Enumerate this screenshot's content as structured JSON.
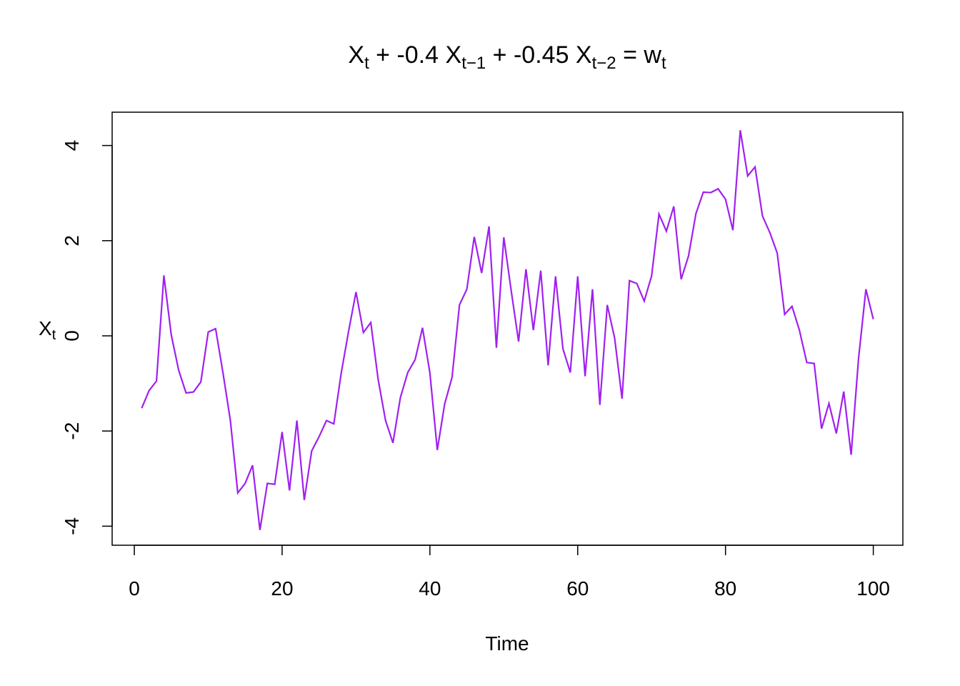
{
  "chart_data": {
    "type": "line",
    "title": {
      "parts": [
        {
          "text": "X",
          "sub": "t"
        },
        {
          "text": " +  -0.4 X",
          "sub": "t−1"
        },
        {
          "text": " +  -0.45 X",
          "sub": "t−2"
        },
        {
          "text": " = w",
          "sub": "t"
        }
      ]
    },
    "xlabel": "Time",
    "ylabel": {
      "text": "X",
      "sub": "t"
    },
    "xlim": [
      -3,
      104
    ],
    "ylim": [
      -4.4,
      4.7
    ],
    "xticks": [
      0,
      20,
      40,
      60,
      80,
      100
    ],
    "yticks": [
      -4,
      -2,
      0,
      2,
      4
    ],
    "grid": false,
    "series": [
      {
        "color": "#A020F0",
        "x": [
          1,
          2,
          3,
          4,
          5,
          6,
          7,
          8,
          9,
          10,
          11,
          12,
          13,
          14,
          15,
          16,
          17,
          18,
          19,
          20,
          21,
          22,
          23,
          24,
          25,
          26,
          27,
          28,
          29,
          30,
          31,
          32,
          33,
          34,
          35,
          36,
          37,
          38,
          39,
          40,
          41,
          42,
          43,
          44,
          45,
          46,
          47,
          48,
          49,
          50,
          51,
          52,
          53,
          54,
          55,
          56,
          57,
          58,
          59,
          60,
          61,
          62,
          63,
          64,
          65,
          66,
          67,
          68,
          69,
          70,
          71,
          72,
          73,
          74,
          75,
          76,
          77,
          78,
          79,
          80,
          81,
          82,
          83,
          84,
          85,
          86,
          87,
          88,
          89,
          90,
          91,
          92,
          93,
          94,
          95,
          96,
          97,
          98,
          99,
          100
        ],
        "values": [
          -1.52,
          -1.15,
          -0.95,
          1.27,
          0.02,
          -0.72,
          -1.2,
          -1.18,
          -0.97,
          0.08,
          0.15,
          -0.78,
          -1.78,
          -3.3,
          -3.1,
          -2.72,
          -4.08,
          -3.1,
          -3.12,
          -2.02,
          -3.25,
          -1.78,
          -3.45,
          -2.42,
          -2.12,
          -1.78,
          -1.85,
          -0.78,
          0.1,
          0.92,
          0.07,
          0.28,
          -0.92,
          -1.78,
          -2.25,
          -1.3,
          -0.77,
          -0.5,
          0.17,
          -0.78,
          -2.4,
          -1.43,
          -0.87,
          0.65,
          0.98,
          2.08,
          1.32,
          2.3,
          -0.25,
          2.07,
          0.95,
          -0.12,
          1.4,
          0.12,
          1.37,
          -0.62,
          1.25,
          -0.27,
          -0.77,
          1.25,
          -0.85,
          0.98,
          -1.45,
          0.65,
          -0.05,
          -1.32,
          1.16,
          1.1,
          0.73,
          1.26,
          2.56,
          2.2,
          2.72,
          1.19,
          1.68,
          2.57,
          3.02,
          3.01,
          3.09,
          2.87,
          2.22,
          4.32,
          3.36,
          3.55,
          2.52,
          2.17,
          1.74,
          0.45,
          0.62,
          0.12,
          -0.56,
          -0.58,
          -1.95,
          -1.42,
          -2.05,
          -1.17,
          -2.5,
          -0.48,
          0.98,
          0.35
        ]
      }
    ]
  }
}
